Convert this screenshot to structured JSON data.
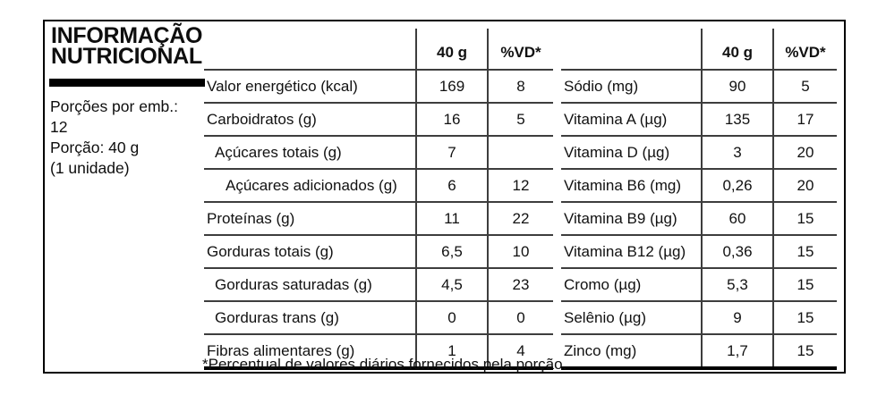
{
  "label": {
    "title_line1": "INFORMAÇÃO",
    "title_line2": "NUTRICIONAL",
    "servings_label": "Porções por emb.:",
    "servings_value": "12",
    "portion": "Porção: 40 g",
    "portion_unit": "(1 unidade)",
    "footnote": "*Percentual de valores diários fornecidos pela porção."
  },
  "colors": {
    "border": "#000000",
    "grid_line": "#3d3d3d",
    "text": "#111111"
  },
  "left_table": {
    "headers": {
      "amount": "40 g",
      "dv": "%VD*"
    },
    "rows": [
      {
        "name": "Valor energético (kcal)",
        "amount": "169",
        "dv": "8"
      },
      {
        "name": "Carboidratos (g)",
        "amount": "16",
        "dv": "5"
      },
      {
        "name": "Açúcares totais (g)",
        "amount": "7",
        "dv": ""
      },
      {
        "name": "Açúcares adicionados (g)",
        "amount": "6",
        "dv": "12"
      },
      {
        "name": "Proteínas (g)",
        "amount": "11",
        "dv": "22"
      },
      {
        "name": "Gorduras totais (g)",
        "amount": "6,5",
        "dv": "10"
      },
      {
        "name": "Gorduras saturadas (g)",
        "amount": "4,5",
        "dv": "23"
      },
      {
        "name": "Gorduras trans (g)",
        "amount": "0",
        "dv": "0"
      },
      {
        "name": "Fibras alimentares (g)",
        "amount": "1",
        "dv": "4"
      }
    ]
  },
  "right_table": {
    "headers": {
      "amount": "40 g",
      "dv": "%VD*"
    },
    "rows": [
      {
        "name": "Sódio (mg)",
        "amount": "90",
        "dv": "5"
      },
      {
        "name": "Vitamina A (µg)",
        "amount": "135",
        "dv": "17"
      },
      {
        "name": "Vitamina D (µg)",
        "amount": "3",
        "dv": "20"
      },
      {
        "name": "Vitamina B6 (mg)",
        "amount": "0,26",
        "dv": "20"
      },
      {
        "name": "Vitamina B9 (µg)",
        "amount": "60",
        "dv": "15"
      },
      {
        "name": "Vitamina B12 (µg)",
        "amount": "0,36",
        "dv": "15"
      },
      {
        "name": "Cromo (µg)",
        "amount": "5,3",
        "dv": "15"
      },
      {
        "name": "Selênio (µg)",
        "amount": "9",
        "dv": "15"
      },
      {
        "name": "Zinco (mg)",
        "amount": "1,7",
        "dv": "15"
      }
    ]
  }
}
